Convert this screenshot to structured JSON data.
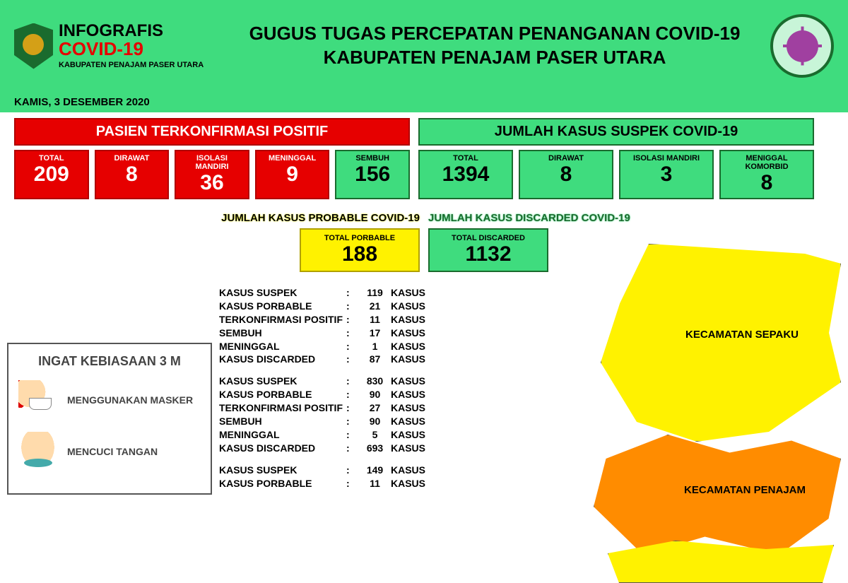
{
  "header": {
    "info_label": "INFOGRAFIS",
    "covid_label": "COVID-19",
    "subtitle": "KABUPATEN PENAJAM PASER UTARA",
    "title_line1": "GUGUS TUGAS PERCEPATAN PENANGANAN COVID-19",
    "title_line2": "KABUPATEN PENAJAM PASER UTARA"
  },
  "date": "KAMIS, 3 DESEMBER 2020",
  "positive": {
    "title": "PASIEN TERKONFIRMASI POSITIF",
    "stats": [
      {
        "label": "TOTAL",
        "value": "209",
        "class": "r"
      },
      {
        "label": "DIRAWAT",
        "value": "8",
        "class": "r"
      },
      {
        "label": "ISOLASI MANDIRI",
        "value": "36",
        "class": "r"
      },
      {
        "label": "MENINGGAL",
        "value": "9",
        "class": "r"
      },
      {
        "label": "SEMBUH",
        "value": "156",
        "class": "g"
      }
    ]
  },
  "suspect": {
    "title": "JUMLAH KASUS SUSPEK COVID-19",
    "stats": [
      {
        "label": "TOTAL",
        "value": "1394",
        "class": "g"
      },
      {
        "label": "DIRAWAT",
        "value": "8",
        "class": "g"
      },
      {
        "label": "ISOLASI MANDIRI",
        "value": "3",
        "class": "g"
      },
      {
        "label": "MENIGGAL KOMORBID",
        "value": "8",
        "class": "g"
      }
    ]
  },
  "probable": {
    "title": "JUMLAH KASUS PROBABLE COVID-19",
    "box_label": "TOTAL PORBABLE",
    "value": "188"
  },
  "discarded": {
    "title": "JUMLAH KASUS DISCARDED COVID-19",
    "box_label": "TOTAL DISCARDED",
    "value": "1132"
  },
  "reminder": {
    "title": "INGAT KEBIASAAN 3 M",
    "items": [
      {
        "icon": "mask",
        "label": "MENGGUNAKAN MASKER"
      },
      {
        "icon": "wash",
        "label": "MENCUCI TANGAN"
      }
    ]
  },
  "regions_data": [
    {
      "lines": [
        {
          "label": "KASUS SUSPEK",
          "value": "119",
          "unit": "KASUS"
        },
        {
          "label": "KASUS PORBABLE",
          "value": "21",
          "unit": "KASUS"
        },
        {
          "label": "TERKONFIRMASI POSITIF",
          "value": "11",
          "unit": "KASUS"
        },
        {
          "label": "SEMBUH",
          "value": "17",
          "unit": "KASUS"
        },
        {
          "label": "MENINGGAL",
          "value": "1",
          "unit": "KASUS"
        },
        {
          "label": "KASUS DISCARDED",
          "value": "87",
          "unit": "KASUS"
        }
      ]
    },
    {
      "lines": [
        {
          "label": "KASUS SUSPEK",
          "value": "830",
          "unit": "KASUS"
        },
        {
          "label": "KASUS PORBABLE",
          "value": "90",
          "unit": "KASUS"
        },
        {
          "label": "TERKONFIRMASI POSITIF",
          "value": "27",
          "unit": "KASUS"
        },
        {
          "label": "SEMBUH",
          "value": "90",
          "unit": "KASUS"
        },
        {
          "label": "MENINGGAL",
          "value": "5",
          "unit": "KASUS"
        },
        {
          "label": "KASUS DISCARDED",
          "value": "693",
          "unit": "KASUS"
        }
      ]
    },
    {
      "lines": [
        {
          "label": "KASUS SUSPEK",
          "value": "149",
          "unit": "KASUS"
        },
        {
          "label": "KASUS PORBABLE",
          "value": "11",
          "unit": "KASUS"
        }
      ]
    }
  ],
  "map_labels": {
    "sepaku": "KECAMATAN SEPAKU",
    "penajam": "KECAMATAN PENAJAM"
  },
  "colors": {
    "header_bg": "#3fdc7e",
    "red": "#e60000",
    "green": "#3fdc7e",
    "yellow": "#fff200",
    "orange": "#ff8c00"
  }
}
